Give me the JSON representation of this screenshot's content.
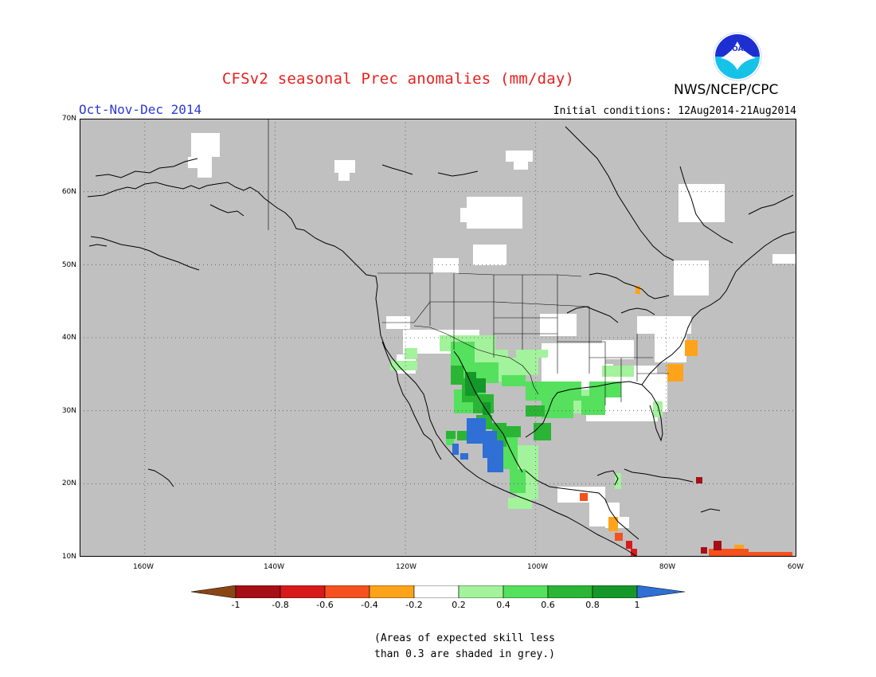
{
  "title": "CFSv2 seasonal Prec anomalies (mm/day)",
  "period": "Oct-Nov-Dec 2014",
  "initial_conditions": "Initial conditions: 12Aug2014-21Aug2014",
  "agency": "NWS/NCEP/CPC",
  "logo_text": "NOAA",
  "lat_labels": [
    "70N",
    "60N",
    "50N",
    "40N",
    "30N",
    "20N",
    "10N"
  ],
  "lon_labels": [
    "160W",
    "140W",
    "120W",
    "100W",
    "80W",
    "60W"
  ],
  "colorbar": {
    "labels": [
      "-1",
      "-0.8",
      "-0.6",
      "-0.4",
      "-0.2",
      "0.2",
      "0.4",
      "0.6",
      "0.8",
      "1"
    ],
    "colors": [
      "#8b4513",
      "#a50f15",
      "#d7191c",
      "#f4511e",
      "#ffa31a",
      "#ffffff",
      "#a3f29c",
      "#55e05e",
      "#2ab535",
      "#14982a",
      "#2f6fd6"
    ]
  },
  "colors": {
    "skill_grey": "#c0c0c0",
    "title": "#e8211e",
    "period": "#2a39d6"
  },
  "note_line1": "(Areas of expected skill less",
  "note_line2": "than 0.3 are shaded in grey.)"
}
